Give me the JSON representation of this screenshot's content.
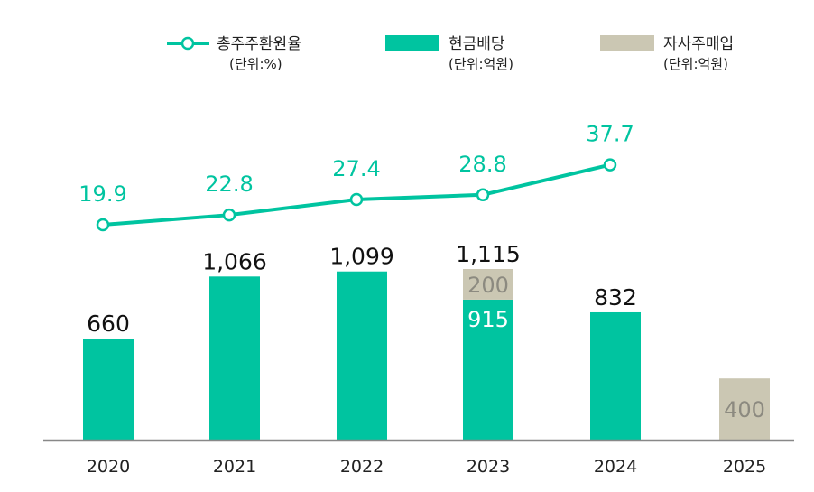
{
  "colors": {
    "cash": "#00c4a0",
    "buyback": "#cbc7b3",
    "rate_line": "#00c4a0",
    "axis": "#888888",
    "buyback_text": "#8c8a80",
    "inner_cash_text": "#ffffff"
  },
  "legend": [
    {
      "key": "rate",
      "label": "총주주환원율",
      "unit": "(단위:%)",
      "icon": "line-marker-icon"
    },
    {
      "key": "cash",
      "label": "현금배당",
      "unit": "(단위:억원)",
      "icon": "green-block-icon"
    },
    {
      "key": "buyback",
      "label": "자사주매입",
      "unit": "(단위:억원)",
      "icon": "beige-block-icon"
    }
  ],
  "chart_data": {
    "type": "bar",
    "title": "",
    "xlabel": "",
    "ylabel": "",
    "categories": [
      "2020",
      "2021",
      "2022",
      "2023",
      "2024",
      "2025"
    ],
    "series": [
      {
        "name": "현금배당",
        "unit": "억원",
        "kind": "bar",
        "values": [
          660,
          1066,
          1099,
          915,
          832,
          null
        ]
      },
      {
        "name": "자사주매입",
        "unit": "억원",
        "kind": "bar",
        "values": [
          null,
          null,
          null,
          200,
          null,
          400
        ]
      },
      {
        "name": "총주주환원율",
        "unit": "%",
        "kind": "line",
        "values": [
          19.9,
          22.8,
          27.4,
          28.8,
          37.7,
          null
        ]
      }
    ],
    "rate_labels": [
      "19.9",
      "22.8",
      "27.4",
      "28.8",
      "37.7",
      ""
    ],
    "bar_total_labels": [
      "660",
      "1,066",
      "1,099",
      "1,115",
      "832",
      ""
    ],
    "bar_inner_labels": {
      "cash": [
        "",
        "",
        "",
        "915",
        "",
        ""
      ],
      "buyback": [
        "",
        "",
        "",
        "200",
        "",
        "400"
      ]
    },
    "stacked": true
  }
}
